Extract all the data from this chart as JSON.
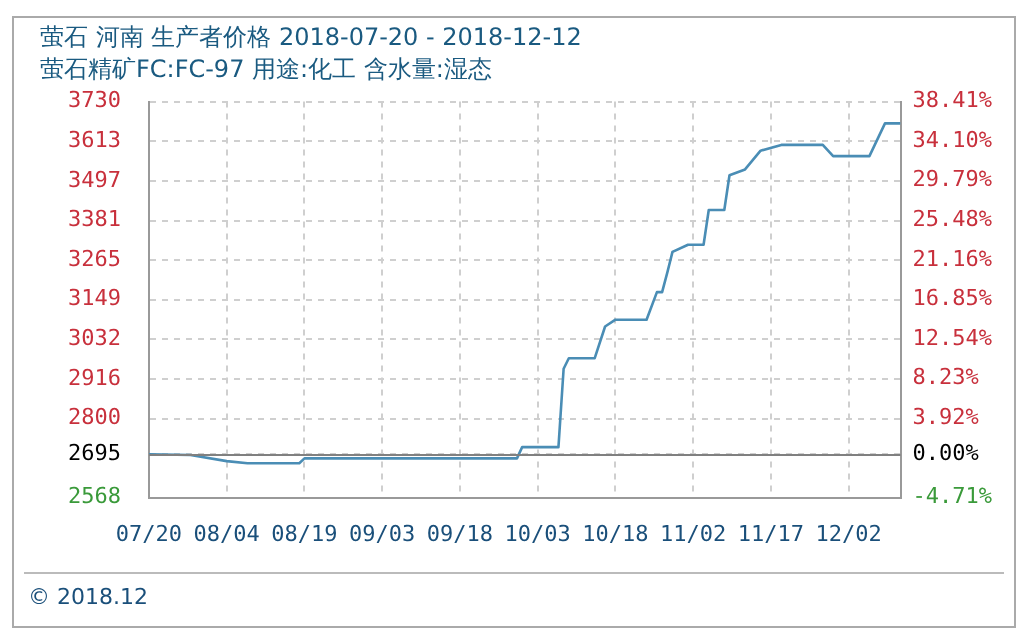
{
  "chart_data": {
    "type": "line",
    "title": "萤石 河南 生产者价格 2018-07-20 - 2018-12-12",
    "subtitle": "萤石精矿FC:FC-97 用途:化工 含水量:湿态",
    "x": [
      "2018-07-20",
      "2018-07-28",
      "2018-08-04",
      "2018-08-08",
      "2018-08-18",
      "2018-08-19",
      "2018-09-29",
      "2018-09-30",
      "2018-10-07",
      "2018-10-08",
      "2018-10-09",
      "2018-10-14",
      "2018-10-16",
      "2018-10-18",
      "2018-10-24",
      "2018-10-26",
      "2018-10-27",
      "2018-10-28",
      "2018-10-29",
      "2018-11-01",
      "2018-11-04",
      "2018-11-05",
      "2018-11-08",
      "2018-11-09",
      "2018-11-12",
      "2018-11-15",
      "2018-11-19",
      "2018-11-27",
      "2018-11-29",
      "2018-12-06",
      "2018-12-09",
      "2018-12-12"
    ],
    "series": [
      {
        "color": "#4a8db5",
        "values": [
          2695,
          2693,
          2675,
          2669,
          2669,
          2683,
          2683,
          2716,
          2716,
          2946,
          2977,
          2977,
          3070,
          3090,
          3090,
          3171,
          3171,
          3228,
          3289,
          3310,
          3310,
          3412,
          3412,
          3514,
          3531,
          3586,
          3603,
          3603,
          3570,
          3570,
          3666,
          3666
        ]
      }
    ],
    "xlim": [
      "2018-07-20",
      "2018-12-12"
    ],
    "xticks": [
      {
        "value": "2018-07-20",
        "label": "07/20"
      },
      {
        "value": "2018-08-04",
        "label": "08/04"
      },
      {
        "value": "2018-08-19",
        "label": "08/19"
      },
      {
        "value": "2018-09-03",
        "label": "09/03"
      },
      {
        "value": "2018-09-18",
        "label": "09/18"
      },
      {
        "value": "2018-10-03",
        "label": "10/03"
      },
      {
        "value": "2018-10-18",
        "label": "10/18"
      },
      {
        "value": "2018-11-02",
        "label": "11/02"
      },
      {
        "value": "2018-11-17",
        "label": "11/17"
      },
      {
        "value": "2018-12-02",
        "label": "12/02"
      }
    ],
    "ylim": [
      2568,
      3730
    ],
    "yticks": [
      2568,
      2695,
      2800,
      2916,
      3032,
      3149,
      3265,
      3381,
      3497,
      3613,
      3730
    ],
    "y2lim": [
      -4.71,
      38.41
    ],
    "y2ticks": [
      {
        "value": -4.71,
        "label": "-4.71%"
      },
      {
        "value": 0,
        "label": "0.00%"
      },
      {
        "value": 3.92,
        "label": "3.92%"
      },
      {
        "value": 8.23,
        "label": "8.23%"
      },
      {
        "value": 12.54,
        "label": "12.54%"
      },
      {
        "value": 16.85,
        "label": "16.85%"
      },
      {
        "value": 21.16,
        "label": "21.16%"
      },
      {
        "value": 25.48,
        "label": "25.48%"
      },
      {
        "value": 29.79,
        "label": "29.79%"
      },
      {
        "value": 34.1,
        "label": "34.10%"
      },
      {
        "value": 38.41,
        "label": "38.41%"
      }
    ],
    "ref_lines": [
      {
        "axis": "y",
        "value": 2695,
        "color": "#808080"
      }
    ],
    "grid": true,
    "legend": false,
    "marker": "none",
    "line_style": "solid",
    "annotations": [
      "© 2018.12"
    ]
  }
}
